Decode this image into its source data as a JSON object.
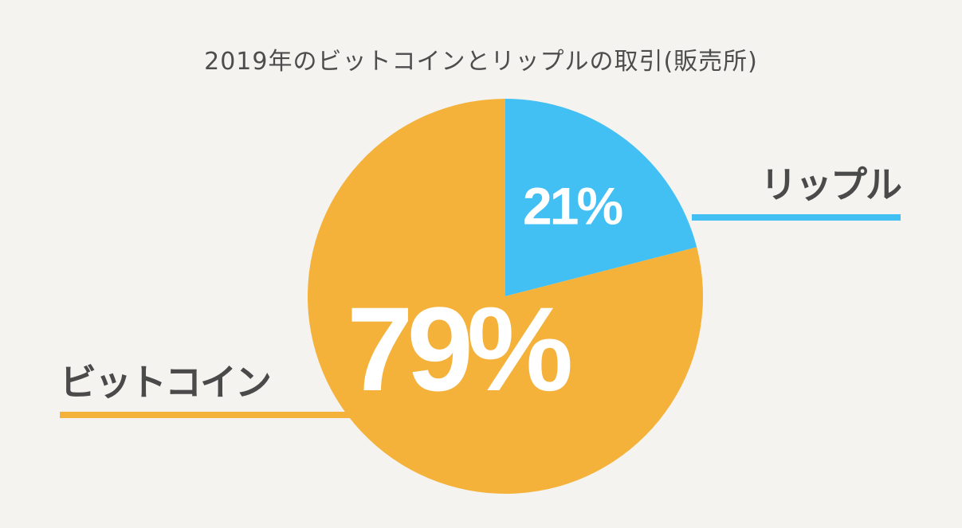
{
  "chart_data": {
    "type": "pie",
    "title": "2019年のビットコインとリップルの取引(販売所)",
    "slices": [
      {
        "label": "リップル",
        "value": 21,
        "value_label": "21%",
        "color": "#42c0f3"
      },
      {
        "label": "ビットコイン",
        "value": 79,
        "value_label": "79%",
        "color": "#f4b23b"
      }
    ],
    "legend": "callout lines"
  },
  "colors": {
    "background": "#f4f3f0",
    "title_text": "#4d4d4d",
    "label_text": "#4a4a4a"
  }
}
